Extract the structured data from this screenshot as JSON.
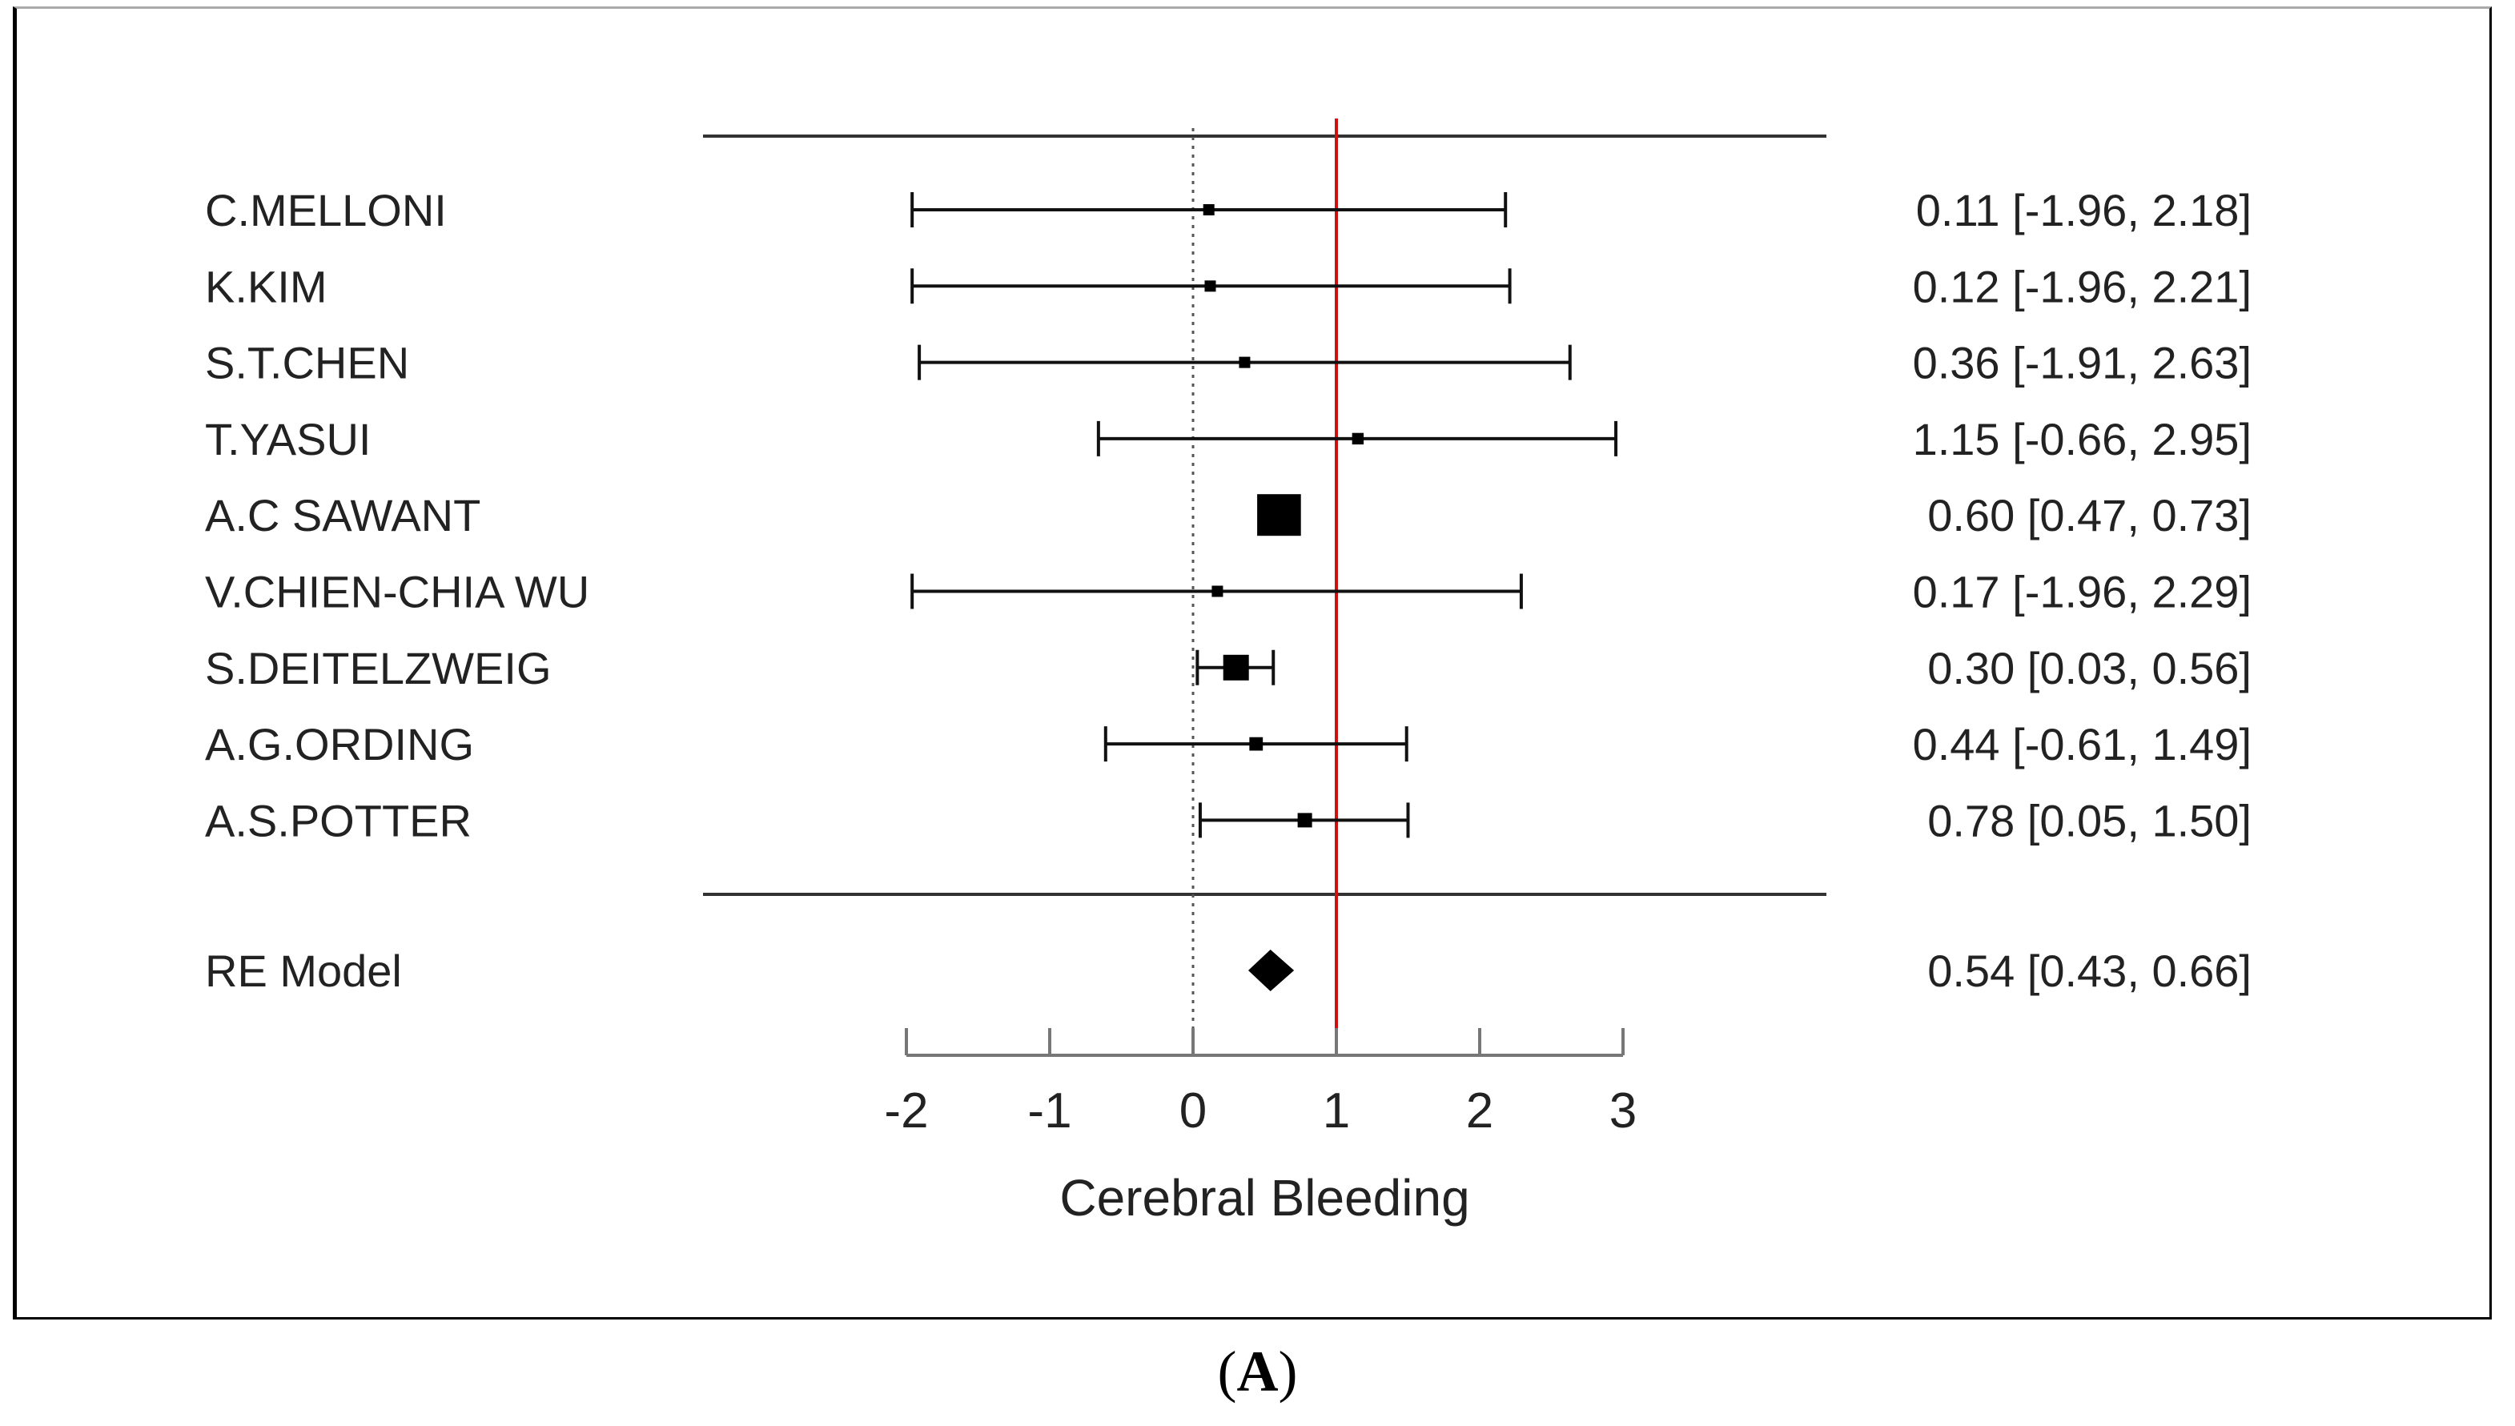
{
  "chart_data": {
    "type": "forest",
    "xlabel": "Cerebral Bleeding",
    "xlim": [
      -2,
      3
    ],
    "xticks": [
      "-2",
      "-1",
      "0",
      "1",
      "2",
      "3"
    ],
    "null_line": 0,
    "reference_line": 1,
    "reference_line_color": "#cc1111",
    "studies": [
      {
        "label": "C.MELLONI",
        "estimate": 0.11,
        "lower": -1.96,
        "upper": 2.18,
        "text": "0.11 [-1.96, 2.18]",
        "weight": 0.05
      },
      {
        "label": "K.KIM",
        "estimate": 0.12,
        "lower": -1.96,
        "upper": 2.21,
        "text": "0.12 [-1.96, 2.21]",
        "weight": 0.05
      },
      {
        "label": "S.T.CHEN",
        "estimate": 0.36,
        "lower": -1.91,
        "upper": 2.63,
        "text": "0.36 [-1.91, 2.63]",
        "weight": 0.05
      },
      {
        "label": "T.YASUI",
        "estimate": 1.15,
        "lower": -0.66,
        "upper": 2.95,
        "text": "1.15 [-0.66, 2.95]",
        "weight": 0.06
      },
      {
        "label": "A.C SAWANT",
        "estimate": 0.6,
        "lower": 0.47,
        "upper": 0.73,
        "text": "0.60 [0.47, 0.73]",
        "weight": 1.0
      },
      {
        "label": "V.CHIEN-CHIA WU",
        "estimate": 0.17,
        "lower": -1.96,
        "upper": 2.29,
        "text": "0.17 [-1.96, 2.29]",
        "weight": 0.05
      },
      {
        "label": "S.DEITELZWEIG",
        "estimate": 0.3,
        "lower": 0.03,
        "upper": 0.56,
        "text": "0.30 [0.03, 0.56]",
        "weight": 0.5
      },
      {
        "label": "A.G.ORDING",
        "estimate": 0.44,
        "lower": -0.61,
        "upper": 1.49,
        "text": "0.44 [-0.61, 1.49]",
        "weight": 0.12
      },
      {
        "label": "A.S.POTTER",
        "estimate": 0.78,
        "lower": 0.05,
        "upper": 1.5,
        "text": "0.78 [0.05, 1.50]",
        "weight": 0.15
      }
    ],
    "summary": {
      "label": "RE Model",
      "estimate": 0.54,
      "lower": 0.43,
      "upper": 0.66,
      "text": "0.54 [0.43, 0.66]"
    }
  },
  "caption": {
    "open": "(",
    "letter": "A",
    "close": ")"
  }
}
